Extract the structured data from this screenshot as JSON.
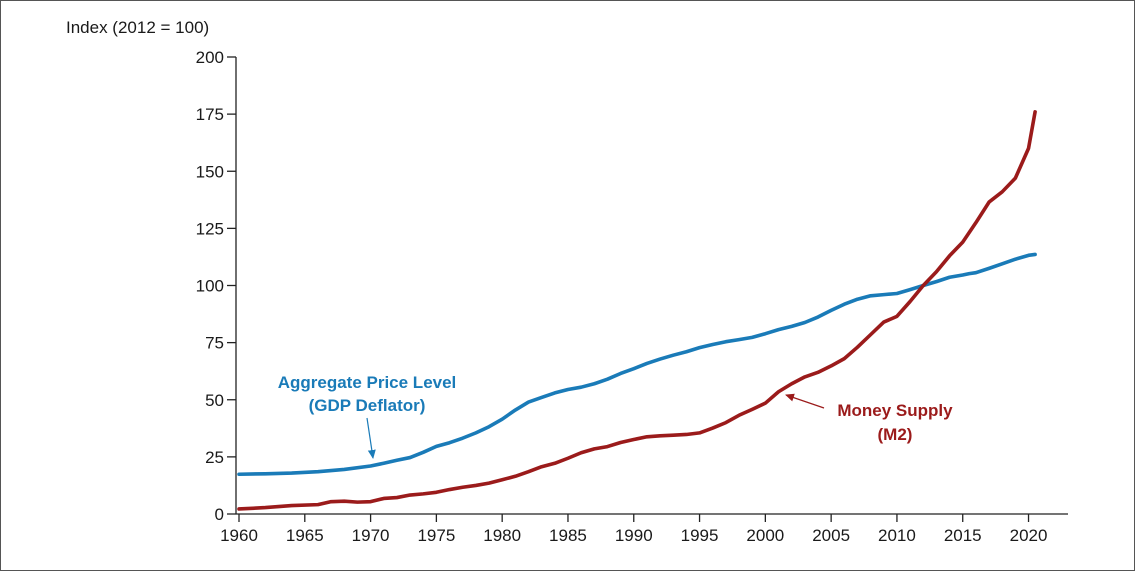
{
  "chart_data": {
    "type": "line",
    "title": "",
    "xlabel": "",
    "ylabel": "Index (2012 = 100)",
    "xlim": [
      1960,
      2023
    ],
    "ylim": [
      0,
      200
    ],
    "xticks": [
      "1960",
      "1965",
      "1970",
      "1975",
      "1980",
      "1985",
      "1990",
      "1995",
      "2000",
      "2005",
      "2010",
      "2015",
      "2020"
    ],
    "yticks": [
      "0",
      "25",
      "50",
      "75",
      "100",
      "125",
      "150",
      "175",
      "200"
    ],
    "grid": false,
    "colors": {
      "price": "#1a7bb8",
      "money": "#9b1b1b",
      "axis": "#222222"
    },
    "annotations": {
      "price": [
        "Aggregate Price Level",
        "(GDP Deflator)"
      ],
      "money": [
        "Money Supply",
        "(M2)"
      ]
    },
    "series": [
      {
        "key": "price",
        "name": "Aggregate Price Level (GDP Deflator)",
        "x": [
          1960,
          1962,
          1964,
          1966,
          1968,
          1970,
          1971,
          1972,
          1973,
          1974,
          1975,
          1976,
          1977,
          1978,
          1979,
          1980,
          1981,
          1982,
          1983,
          1984,
          1985,
          1986,
          1987,
          1988,
          1989,
          1990,
          1991,
          1992,
          1993,
          1994,
          1995,
          1996,
          1997,
          1998,
          1999,
          2000,
          2001,
          2002,
          2003,
          2004,
          2005,
          2006,
          2007,
          2008,
          2009,
          2010,
          2011,
          2012,
          2013,
          2014,
          2015,
          2015.5,
          2016,
          2017,
          2018,
          2019,
          2020,
          2020.5
        ],
        "values": [
          17.4,
          17.6,
          17.9,
          18.5,
          19.5,
          21.0,
          22.2,
          23.5,
          24.7,
          27.0,
          29.6,
          31.2,
          33.2,
          35.5,
          38.2,
          41.5,
          45.5,
          49.0,
          51.0,
          53.0,
          54.5,
          55.5,
          57.0,
          59.0,
          61.5,
          63.6,
          65.9,
          67.8,
          69.5,
          71.0,
          72.8,
          74.2,
          75.4,
          76.3,
          77.3,
          78.9,
          80.7,
          82.1,
          83.8,
          86.2,
          89.1,
          91.8,
          94.0,
          95.5,
          96.0,
          96.5,
          98.2,
          100.0,
          101.7,
          103.6,
          104.6,
          105.2,
          105.6,
          107.5,
          109.5,
          111.5,
          113.2,
          113.6
        ]
      },
      {
        "key": "money",
        "name": "Money Supply (M2)",
        "x": [
          1960,
          1962,
          1964,
          1966,
          1967,
          1968,
          1969,
          1970,
          1971,
          1972,
          1973,
          1974,
          1975,
          1976,
          1977,
          1978,
          1979,
          1980,
          1981,
          1982,
          1983,
          1984,
          1985,
          1986,
          1987,
          1988,
          1989,
          1990,
          1991,
          1992,
          1993,
          1994,
          1995,
          1996,
          1997,
          1998,
          1999,
          2000,
          2001,
          2002,
          2003,
          2004,
          2005,
          2006,
          2007,
          2008,
          2009,
          2010,
          2011,
          2012,
          2013,
          2014,
          2015,
          2016,
          2017,
          2018,
          2019,
          2020,
          2020.5
        ],
        "values": [
          2.2,
          2.8,
          3.7,
          4.1,
          5.4,
          5.6,
          5.2,
          5.4,
          6.8,
          7.2,
          8.3,
          8.8,
          9.5,
          10.7,
          11.7,
          12.5,
          13.5,
          15.0,
          16.5,
          18.5,
          20.7,
          22.2,
          24.4,
          26.8,
          28.5,
          29.5,
          31.3,
          32.6,
          33.8,
          34.2,
          34.5,
          34.8,
          35.5,
          37.6,
          40.0,
          43.2,
          45.8,
          48.5,
          53.5,
          57.0,
          60.0,
          62.0,
          64.8,
          68.0,
          73.0,
          78.5,
          84.0,
          86.5,
          93.0,
          100.0,
          106.0,
          113.0,
          119.0,
          127.5,
          136.5,
          141.0,
          147.0,
          160.0,
          176.0
        ]
      }
    ]
  }
}
